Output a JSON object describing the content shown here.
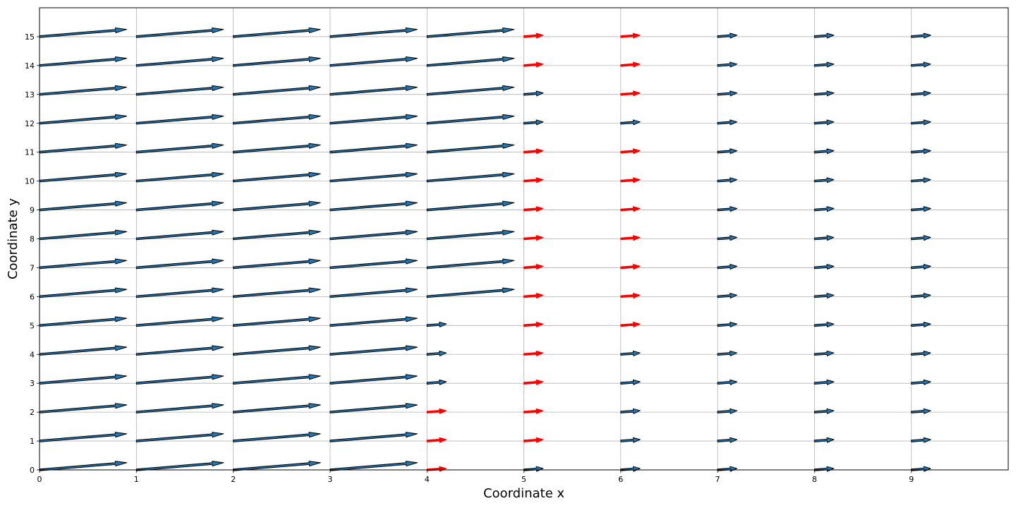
{
  "chart_data": {
    "type": "quiver",
    "xlabel": "Coordinate x",
    "ylabel": "Coordinate y",
    "xlim": [
      0,
      10
    ],
    "ylim": [
      0,
      16
    ],
    "x_ticks": [
      0,
      1,
      2,
      3,
      4,
      5,
      6,
      7,
      8,
      9
    ],
    "y_ticks": [
      0,
      1,
      2,
      3,
      4,
      5,
      6,
      7,
      8,
      9,
      10,
      11,
      12,
      13,
      14,
      15
    ],
    "grid": true,
    "arrow_direction": {
      "dx": 1,
      "dy": 0.5
    },
    "long_arrow_length": 0.9,
    "short_arrow_length": 0.2,
    "colors": {
      "normal_fill": "#1f77b4",
      "normal_edge": "#000000",
      "highlight": "#ff0000"
    },
    "columns": [
      {
        "x": 0,
        "long_rows": [
          0,
          15
        ],
        "red_rows": []
      },
      {
        "x": 1,
        "long_rows": [
          0,
          15
        ],
        "red_rows": []
      },
      {
        "x": 2,
        "long_rows": [
          0,
          15
        ],
        "red_rows": []
      },
      {
        "x": 3,
        "long_rows": [
          0,
          15
        ],
        "red_rows": []
      },
      {
        "x": 4,
        "long_rows": [
          6,
          15
        ],
        "red_rows": [
          0,
          1,
          2
        ]
      },
      {
        "x": 5,
        "long_rows": null,
        "red_rows": [
          1,
          2,
          3,
          4,
          5,
          6,
          7,
          8,
          9,
          10,
          11,
          14,
          15
        ]
      },
      {
        "x": 6,
        "long_rows": null,
        "red_rows": [
          5,
          6,
          7,
          8,
          9,
          10,
          11,
          13,
          14,
          15
        ]
      },
      {
        "x": 7,
        "long_rows": null,
        "red_rows": []
      },
      {
        "x": 8,
        "long_rows": null,
        "red_rows": []
      },
      {
        "x": 9,
        "long_rows": null,
        "red_rows": []
      }
    ]
  }
}
